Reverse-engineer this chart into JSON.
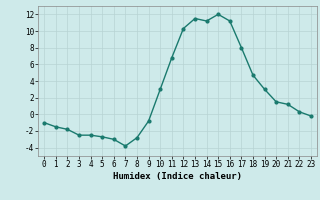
{
  "x": [
    0,
    1,
    2,
    3,
    4,
    5,
    6,
    7,
    8,
    9,
    10,
    11,
    12,
    13,
    14,
    15,
    16,
    17,
    18,
    19,
    20,
    21,
    22,
    23
  ],
  "y": [
    -1.0,
    -1.5,
    -1.8,
    -2.5,
    -2.5,
    -2.7,
    -3.0,
    -3.8,
    -2.8,
    -0.8,
    3.0,
    6.8,
    10.3,
    11.5,
    11.2,
    12.0,
    11.2,
    8.0,
    4.7,
    3.0,
    1.5,
    1.2,
    0.3,
    -0.2
  ],
  "line_color": "#1a7a6e",
  "marker": "o",
  "marker_size": 2.0,
  "linewidth": 1.0,
  "bg_color": "#ceeaea",
  "grid_color": "#b8d4d4",
  "xlabel": "Humidex (Indice chaleur)",
  "xlim": [
    -0.5,
    23.5
  ],
  "ylim": [
    -5,
    13
  ],
  "yticks": [
    -4,
    -2,
    0,
    2,
    4,
    6,
    8,
    10,
    12
  ],
  "xticks": [
    0,
    1,
    2,
    3,
    4,
    5,
    6,
    7,
    8,
    9,
    10,
    11,
    12,
    13,
    14,
    15,
    16,
    17,
    18,
    19,
    20,
    21,
    22,
    23
  ],
  "tick_fontsize": 5.5,
  "label_fontsize": 6.5
}
